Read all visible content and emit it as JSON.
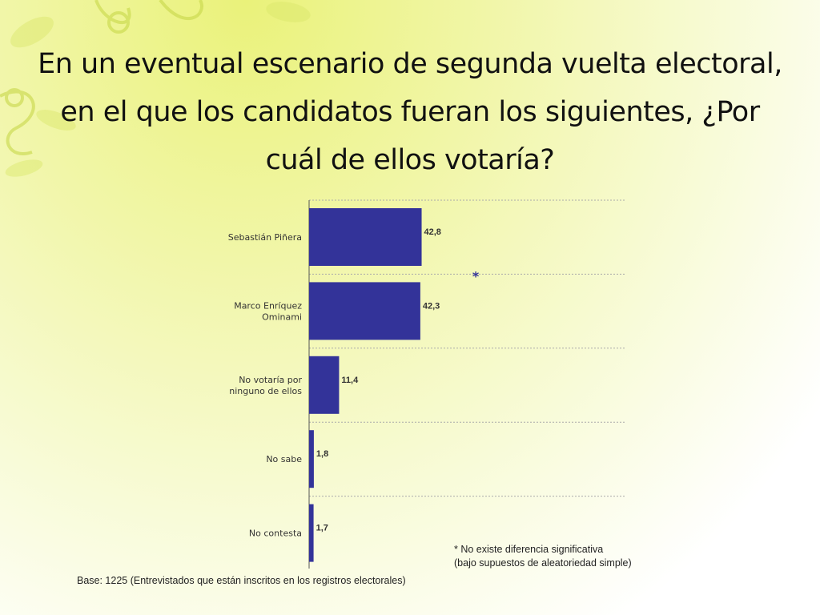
{
  "title": "En un eventual escenario de segunda vuelta electoral, en el que los candidatos fueran los siguientes, ¿Por cuál de ellos votaría?",
  "colors": {
    "bar": "#333399",
    "grid": "#aaaaaa",
    "text": "#333333"
  },
  "chart_data": {
    "type": "bar",
    "orientation": "horizontal",
    "categories": [
      [
        "Sebastián Piñera"
      ],
      [
        "Marco Enríquez",
        "Ominami"
      ],
      [
        "No votaría por",
        "ninguno de ellos"
      ],
      [
        "No sabe"
      ],
      [
        "No contesta"
      ]
    ],
    "values": [
      42.8,
      42.3,
      11.4,
      1.8,
      1.7
    ],
    "value_labels": [
      "42,8",
      "42,3",
      "11,4",
      "1,8",
      "1,7"
    ],
    "xlim": [
      0,
      120
    ],
    "grid": true,
    "annotation": "*"
  },
  "footnote": {
    "line1": "* No existe diferencia significativa",
    "line2": "(bajo supuestos de aleatoriedad simple)"
  },
  "base": "Base: 1225 (Entrevistados que están inscritos en los registros electorales)"
}
